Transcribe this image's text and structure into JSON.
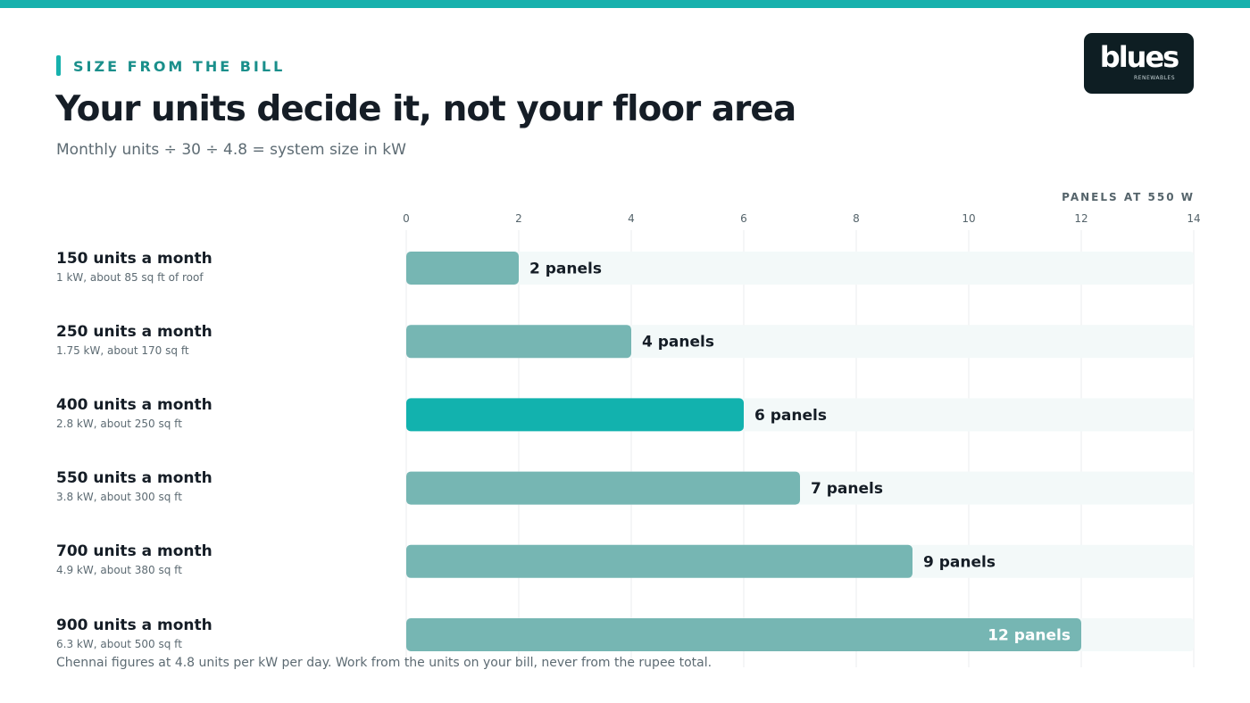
{
  "header": {
    "eyebrow": "SIZE FROM THE BILL",
    "title": "Your units decide it, not your floor area",
    "subtitle": "Monthly units ÷ 30 ÷ 4.8 = system size in kW"
  },
  "logo": {
    "word": "blues",
    "tagline": "RENEWABLES"
  },
  "footnote": "Chennai figures at 4.8 units per kW per day. Work from the units on your bill, never from the rupee total.",
  "colors": {
    "accent": "#17b1ad",
    "bar": "#76b6b3",
    "bar_highlight": "#12b2ae",
    "track": "#f3f9f9",
    "grid": "#ebeeef"
  },
  "chart_data": {
    "type": "bar",
    "orientation": "horizontal",
    "xlabel": "PANELS AT 550 W",
    "xlim": [
      0,
      14
    ],
    "xticks": [
      "0",
      "2",
      "4",
      "6",
      "8",
      "10",
      "12",
      "14"
    ],
    "grid": true,
    "highlight_index": 2,
    "categories": [
      "150 units a month",
      "250 units a month",
      "400 units a month",
      "550 units a month",
      "700 units a month",
      "900 units a month"
    ],
    "subtitles": [
      "1 kW, about 85 sq ft of roof",
      "1.75 kW, about 170 sq ft",
      "2.8 kW, about 250 sq ft",
      "3.8 kW, about 300 sq ft",
      "4.9 kW, about 380 sq ft",
      "6.3 kW, about 500 sq ft"
    ],
    "values": [
      2,
      4,
      6,
      7,
      9,
      12
    ],
    "value_labels": [
      "2 panels",
      "4 panels",
      "6 panels",
      "7 panels",
      "9 panels",
      "12 panels"
    ]
  }
}
